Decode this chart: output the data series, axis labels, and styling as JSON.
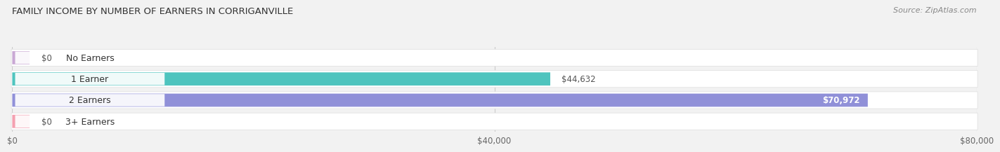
{
  "title": "FAMILY INCOME BY NUMBER OF EARNERS IN CORRIGANVILLE",
  "source": "Source: ZipAtlas.com",
  "categories": [
    "No Earners",
    "1 Earner",
    "2 Earners",
    "3+ Earners"
  ],
  "values": [
    0,
    44632,
    70972,
    0
  ],
  "max_value": 80000,
  "bar_colors": [
    "#c9a8d4",
    "#4ec4be",
    "#9090d8",
    "#f4a0b0"
  ],
  "bar_height": 0.62,
  "background_color": "#f2f2f2",
  "tick_values": [
    0,
    40000,
    80000
  ],
  "tick_labels": [
    "$0",
    "$40,000",
    "$80,000"
  ],
  "value_labels": [
    "$0",
    "$44,632",
    "$70,972",
    "$0"
  ],
  "value_label_inside": [
    false,
    false,
    true,
    false
  ],
  "title_fontsize": 9.5,
  "source_fontsize": 8,
  "cat_fontsize": 9,
  "val_fontsize": 8.5,
  "tick_fontsize": 8.5
}
